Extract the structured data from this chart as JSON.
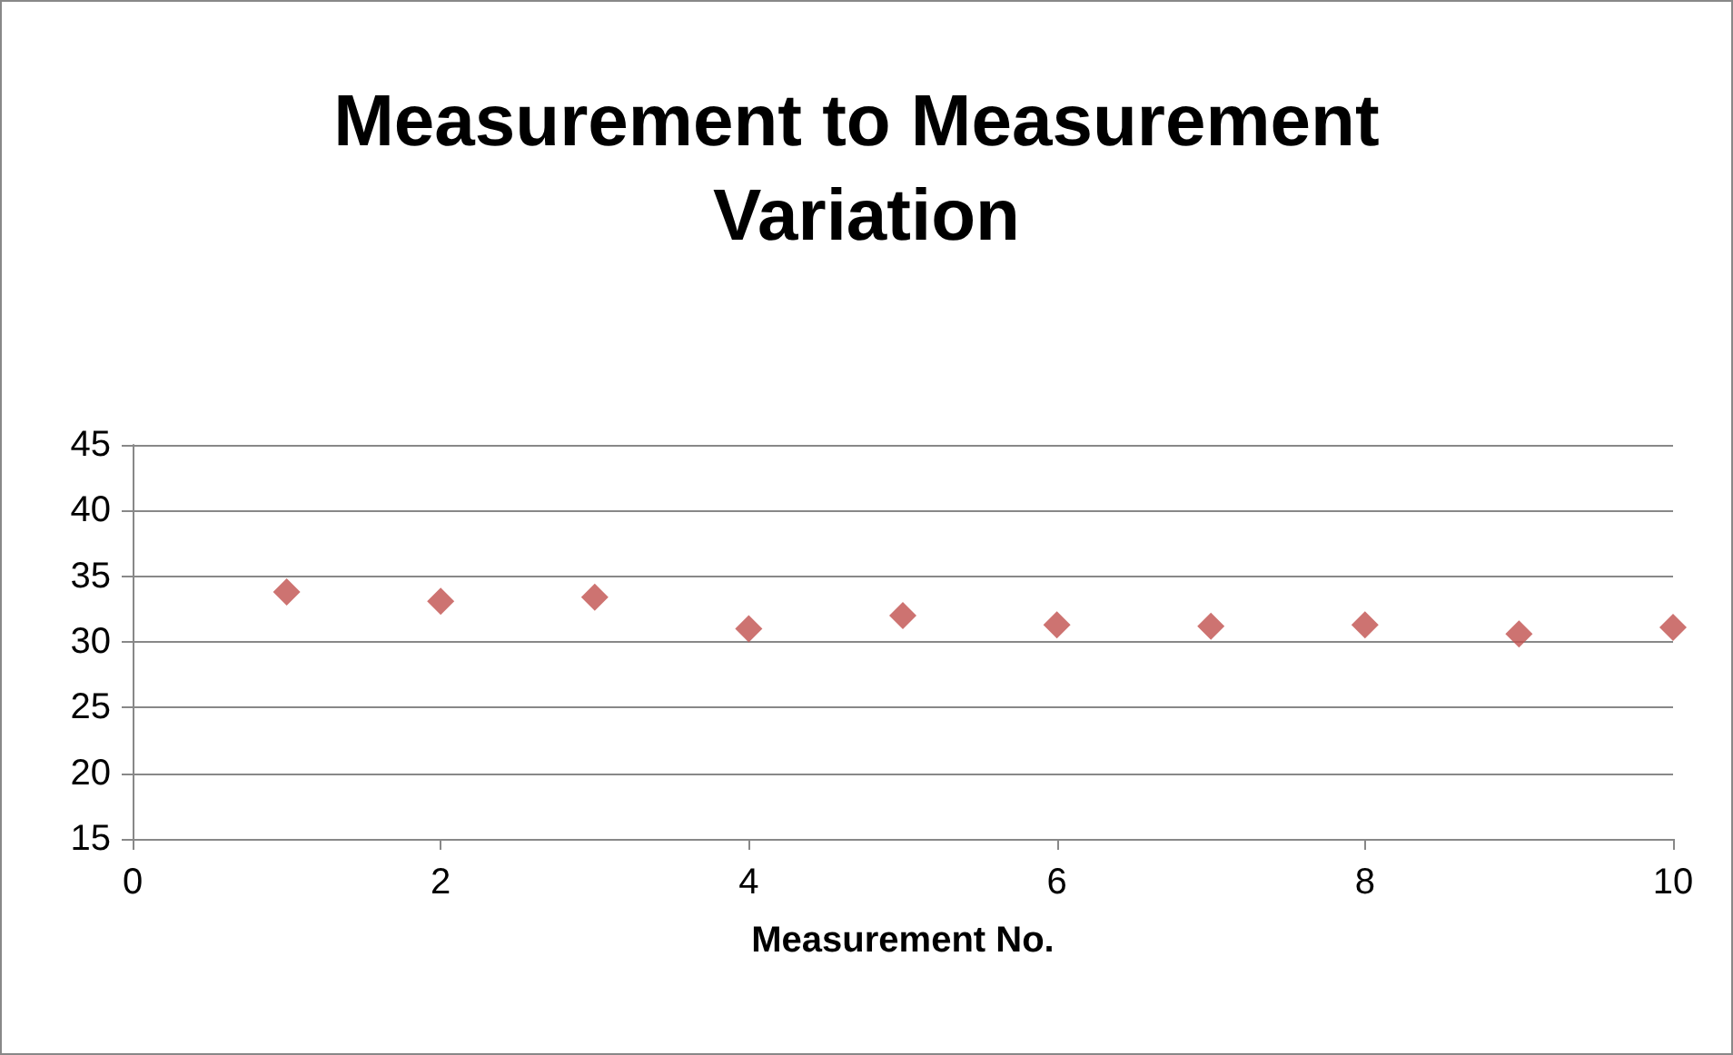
{
  "chart_data": {
    "type": "scatter",
    "title": "Measurement to Measurement Variation",
    "xlabel": "Measurement No.",
    "x": [
      1,
      2,
      3,
      4,
      5,
      6,
      7,
      8,
      9,
      10
    ],
    "series": [
      {
        "color": "#c0504d",
        "values": [
          33.8,
          33.1,
          33.4,
          31.0,
          32.0,
          31.3,
          31.2,
          31.3,
          30.6,
          31.1
        ]
      }
    ],
    "xlim": [
      0,
      10
    ],
    "xticks": [
      0,
      2,
      4,
      6,
      8,
      10
    ],
    "ylim": [
      15,
      45
    ],
    "yticks": [
      15,
      20,
      25,
      30,
      35,
      40,
      45
    ],
    "grid": "y",
    "marker": "diamond"
  }
}
